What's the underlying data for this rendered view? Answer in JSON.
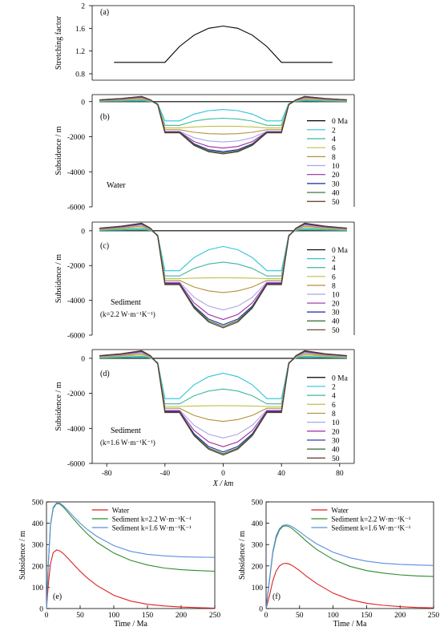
{
  "chart_data": [
    {
      "id": "a",
      "panel_label": "(a)",
      "type": "line",
      "ylabel": "Stretching factor",
      "ylim": [
        0.8,
        2.0
      ],
      "yticks": [
        0.8,
        1.2,
        1.6,
        2
      ],
      "ytick_labels": [
        "0.8",
        "1.2",
        "1.6",
        "2"
      ],
      "series": [
        {
          "color": "#000000",
          "x": [
            -75,
            -40,
            -30,
            -20,
            -10,
            0,
            10,
            20,
            30,
            40,
            75
          ],
          "y": [
            1.0,
            1.0,
            1.28,
            1.48,
            1.6,
            1.64,
            1.6,
            1.48,
            1.28,
            1.0,
            1.0
          ]
        }
      ]
    },
    {
      "id": "b",
      "panel_label": "(b)",
      "type": "line",
      "ylabel": "Subsidence / m",
      "ylim": [
        -6000,
        400
      ],
      "yticks": [
        0,
        -2000,
        -4000,
        -6000
      ],
      "ytick_labels": [
        "0",
        "-2000",
        "-4000",
        "-6000"
      ],
      "annotation": [
        "Water"
      ],
      "legend": [
        "0 Ma",
        "2",
        "4",
        "6",
        "8",
        "10",
        "20",
        "30",
        "40",
        "50"
      ],
      "colors": [
        "#000000",
        "#2ec4d8",
        "#3cb8a0",
        "#bfbf4a",
        "#b8903a",
        "#a8a8e8",
        "#a02aa0",
        "#1a2a9e",
        "#2e6a2e",
        "#5a3a2a"
      ],
      "center_depths": [
        0,
        450,
        950,
        1400,
        1850,
        2300,
        2650,
        2850,
        2920,
        2980
      ],
      "shoulder_heights": [
        0,
        40,
        80,
        130,
        180,
        220,
        260,
        280,
        290,
        300
      ],
      "outer_depths": [
        0,
        1100,
        1350,
        1500,
        1600,
        1700,
        1720,
        1740,
        1760,
        1780
      ],
      "center_x": [
        -30,
        -20,
        -10,
        0,
        10,
        20,
        30
      ],
      "center_profile": [
        0.8,
        0.92,
        0.98,
        1.0,
        0.98,
        0.92,
        0.8
      ]
    },
    {
      "id": "c",
      "panel_label": "(c)",
      "type": "line",
      "ylabel": "Subsidence / m",
      "ylim": [
        -6000,
        500
      ],
      "yticks": [
        0,
        -2000,
        -4000,
        -6000
      ],
      "ytick_labels": [
        "0",
        "-2000",
        "-4000",
        "-6000"
      ],
      "annotation": [
        "Sediment",
        "(k=2.2 W·m⁻¹K⁻¹)"
      ],
      "legend": [
        "0 Ma",
        "2",
        "4",
        "6",
        "8",
        "10",
        "20",
        "30",
        "40",
        "50"
      ],
      "colors": [
        "#000000",
        "#2ec4d8",
        "#3cb8a0",
        "#bfbf4a",
        "#b8903a",
        "#a8a8e8",
        "#a02aa0",
        "#1a2a9e",
        "#2e6a2e",
        "#5a3a2a"
      ],
      "center_depths": [
        0,
        900,
        1800,
        2700,
        3550,
        4550,
        5100,
        5400,
        5500,
        5580
      ],
      "shoulder_heights": [
        0,
        60,
        120,
        200,
        270,
        330,
        380,
        410,
        430,
        440
      ],
      "outer_depths": [
        0,
        2300,
        2600,
        2750,
        2850,
        2950,
        3000,
        3050,
        3080,
        3100
      ],
      "center_x": [
        -30,
        -20,
        -10,
        0,
        10,
        20,
        30
      ],
      "center_profile": [
        0.78,
        0.9,
        0.97,
        1.0,
        0.97,
        0.9,
        0.78
      ]
    },
    {
      "id": "d",
      "panel_label": "(d)",
      "type": "line",
      "ylabel": "Subsidence / m",
      "ylim": [
        -6000,
        500
      ],
      "yticks": [
        0,
        -2000,
        -4000,
        -6000
      ],
      "ytick_labels": [
        "0",
        "-2000",
        "-4000",
        "-6000"
      ],
      "annotation": [
        "Sediment",
        "(k=1.6 W·m⁻¹K⁻¹)"
      ],
      "legend": [
        "0 Ma",
        "2",
        "4",
        "6",
        "8",
        "10",
        "20",
        "30",
        "40",
        "50"
      ],
      "colors": [
        "#000000",
        "#2ec4d8",
        "#3cb8a0",
        "#bfbf4a",
        "#b8903a",
        "#a8a8e8",
        "#a02aa0",
        "#1a2a9e",
        "#2e6a2e",
        "#5a3a2a"
      ],
      "center_depths": [
        0,
        850,
        1750,
        2700,
        3600,
        4550,
        5050,
        5350,
        5450,
        5520
      ],
      "shoulder_heights": [
        0,
        60,
        120,
        200,
        270,
        330,
        380,
        410,
        430,
        440
      ],
      "outer_depths": [
        0,
        2300,
        2600,
        2750,
        2850,
        2950,
        3000,
        3050,
        3080,
        3100
      ],
      "center_x": [
        -30,
        -20,
        -10,
        0,
        10,
        20,
        30
      ],
      "center_profile": [
        0.78,
        0.9,
        0.97,
        1.0,
        0.97,
        0.9,
        0.78
      ],
      "xlabel": "X / km",
      "xlim": [
        -90,
        90
      ],
      "xticks": [
        -80,
        -40,
        0,
        40,
        80
      ],
      "xtick_labels": [
        "-80",
        "-40",
        "0",
        "40",
        "80"
      ]
    },
    {
      "id": "e",
      "panel_label": "(e)",
      "type": "line",
      "xlabel": "Time / Ma",
      "ylabel": "Subsidence / m",
      "xlim": [
        0,
        250
      ],
      "ylim": [
        0,
        500
      ],
      "xticks": [
        0,
        50,
        100,
        150,
        200,
        250
      ],
      "yticks": [
        0,
        100,
        200,
        300,
        400,
        500
      ],
      "series": [
        {
          "name": "Water",
          "color": "#e02020",
          "x": [
            0,
            3,
            6,
            10,
            15,
            20,
            25,
            30,
            40,
            50,
            60,
            75,
            100,
            125,
            150,
            175,
            200,
            225,
            250
          ],
          "y": [
            0,
            120,
            210,
            262,
            275,
            270,
            258,
            242,
            208,
            175,
            145,
            108,
            62,
            35,
            20,
            12,
            7,
            4,
            2
          ]
        },
        {
          "name": "Sediment k=2.2 W·m⁻¹K⁻¹",
          "color": "#2e8b2e",
          "x": [
            0,
            3,
            6,
            10,
            15,
            20,
            25,
            30,
            40,
            50,
            60,
            75,
            100,
            125,
            150,
            175,
            200,
            225,
            250
          ],
          "y": [
            0,
            220,
            390,
            470,
            492,
            490,
            476,
            458,
            420,
            385,
            352,
            310,
            260,
            226,
            204,
            190,
            182,
            178,
            175
          ]
        },
        {
          "name": "Sediment k=1.6 W·m⁻¹K⁻¹",
          "color": "#5b8ee0",
          "x": [
            0,
            3,
            6,
            10,
            15,
            20,
            25,
            30,
            40,
            50,
            60,
            75,
            100,
            125,
            150,
            175,
            200,
            225,
            250
          ],
          "y": [
            0,
            225,
            395,
            475,
            495,
            494,
            482,
            466,
            432,
            400,
            372,
            338,
            295,
            268,
            254,
            247,
            243,
            241,
            240
          ]
        }
      ]
    },
    {
      "id": "f",
      "panel_label": "(f)",
      "type": "line",
      "xlabel": "Time / Ma",
      "ylabel": "Subsidence / m",
      "xlim": [
        0,
        250
      ],
      "ylim": [
        0,
        500
      ],
      "xticks": [
        0,
        50,
        100,
        150,
        200,
        250
      ],
      "yticks": [
        0,
        100,
        200,
        300,
        400,
        500
      ],
      "series": [
        {
          "name": "Water",
          "color": "#e02020",
          "x": [
            0,
            5,
            10,
            15,
            20,
            25,
            30,
            35,
            40,
            50,
            60,
            75,
            100,
            125,
            150,
            175,
            200,
            225,
            250
          ],
          "y": [
            0,
            60,
            130,
            175,
            200,
            210,
            212,
            208,
            200,
            178,
            152,
            118,
            72,
            42,
            25,
            15,
            9,
            5,
            3
          ]
        },
        {
          "name": "Sediment k=2.2 W·m⁻¹K⁻¹",
          "color": "#2e8b2e",
          "x": [
            0,
            5,
            10,
            15,
            20,
            25,
            30,
            35,
            40,
            50,
            60,
            75,
            100,
            125,
            150,
            175,
            200,
            225,
            250
          ],
          "y": [
            0,
            130,
            260,
            330,
            368,
            385,
            388,
            383,
            372,
            345,
            316,
            278,
            230,
            198,
            178,
            166,
            158,
            153,
            150
          ]
        },
        {
          "name": "Sediment k=1.6 W·m⁻¹K⁻¹",
          "color": "#5b8ee0",
          "x": [
            0,
            5,
            10,
            15,
            20,
            25,
            30,
            35,
            40,
            50,
            60,
            75,
            100,
            125,
            150,
            175,
            200,
            225,
            250
          ],
          "y": [
            0,
            135,
            268,
            340,
            375,
            390,
            393,
            390,
            382,
            360,
            336,
            304,
            264,
            238,
            222,
            212,
            207,
            204,
            202
          ]
        }
      ]
    }
  ]
}
